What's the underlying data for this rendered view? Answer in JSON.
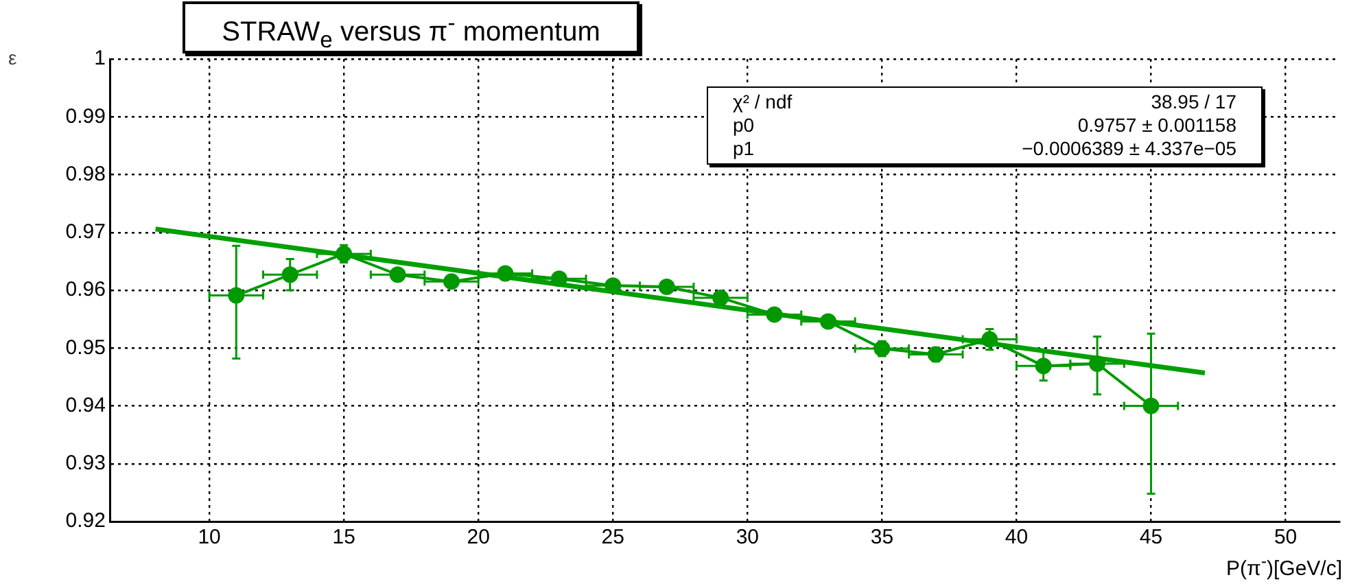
{
  "chart_data": {
    "type": "line",
    "title": "STRAW$_{e}$ versus π$^{-}$ momentum",
    "xlabel": "P(π$^{-}$)[GeV/c]",
    "ylabel": "ε",
    "annotations": [
      "χ² / ndf",
      "38.95 / 17",
      "p0",
      "0.9757 ± 0.001158",
      "p1",
      "−0.0006389 ± 4.337e−05"
    ],
    "xlim": [
      6.3,
      52
    ],
    "xticks": [
      10,
      15,
      20,
      25,
      30,
      35,
      40,
      45,
      50
    ],
    "ylim": [
      0.92,
      1
    ],
    "yticks": [
      0.92,
      0.93,
      0.94,
      0.95,
      0.96,
      0.97,
      0.98,
      0.99,
      1
    ],
    "grid": true,
    "legend": false,
    "x": [
      11,
      13,
      15,
      17,
      19,
      21,
      23,
      25,
      27,
      29,
      31,
      33,
      35,
      37,
      39,
      41,
      43,
      45
    ],
    "series": [
      {
        "color": "#009900",
        "marker": "circle",
        "values": [
          0.9591,
          0.9627,
          0.9663,
          0.9627,
          0.9615,
          0.9629,
          0.962,
          0.9608,
          0.9606,
          0.9587,
          0.9558,
          0.9546,
          0.9499,
          0.9489,
          0.9515,
          0.9469,
          0.9473,
          0.94
        ],
        "errors": [
          [
            0.9482,
            0.9677
          ],
          0.0027,
          0.0015,
          0.001,
          null,
          null,
          null,
          null,
          null,
          null,
          null,
          null,
          0.0013,
          0.0012,
          0.0018,
          0.0025,
          [
            0.942,
            0.952
          ],
          [
            0.9248,
            0.9525
          ]
        ],
        "xerrors": [
          1,
          1,
          1,
          1,
          1,
          1,
          1,
          1,
          1,
          1,
          1,
          1,
          1,
          1,
          1,
          1,
          1,
          1
        ]
      },
      {
        "color": "#00a000",
        "marker": "none",
        "x": [
          8,
          47
        ],
        "values": [
          0.9706,
          0.9457
        ]
      }
    ]
  }
}
